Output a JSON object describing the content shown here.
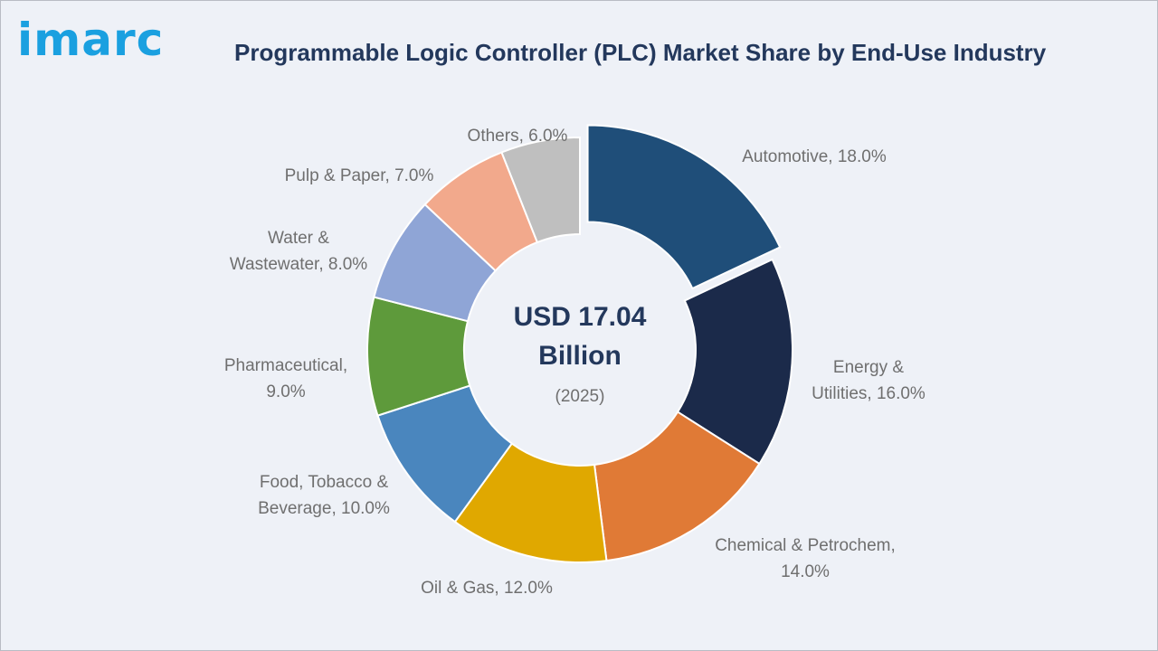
{
  "logo": {
    "text": "imarc",
    "color": "#1aa0e0"
  },
  "header": {
    "title": "Programmable Logic Controller (PLC) Market Share by End-Use Industry"
  },
  "center": {
    "line1": "USD 17.04",
    "line2": "Billion",
    "year": "(2025)"
  },
  "chart_data": {
    "type": "pie",
    "subtype": "donut",
    "title": "Programmable Logic Controller (PLC) Market Share by End-Use Industry",
    "unit": "%",
    "exploded_slice": "Automotive",
    "slices": [
      {
        "name": "Automotive",
        "value": 18.0,
        "color": "#1f4e79",
        "label": [
          "Automotive, 18.0%"
        ]
      },
      {
        "name": "Energy & Utilities",
        "value": 16.0,
        "color": "#1b2a4a",
        "label": [
          "Energy &",
          "Utilities, 16.0%"
        ]
      },
      {
        "name": "Chemical & Petrochem",
        "value": 14.0,
        "color": "#e07a36",
        "label": [
          "Chemical & Petrochem,",
          "14.0%"
        ]
      },
      {
        "name": "Oil & Gas",
        "value": 12.0,
        "color": "#e0a800",
        "label": [
          "Oil & Gas, 12.0%"
        ]
      },
      {
        "name": "Food, Tobacco & Beverage",
        "value": 10.0,
        "color": "#4a86be",
        "label": [
          "Food, Tobacco &",
          "Beverage, 10.0%"
        ]
      },
      {
        "name": "Pharmaceutical",
        "value": 9.0,
        "color": "#5e9a3b",
        "label": [
          "Pharmaceutical,",
          "9.0%"
        ]
      },
      {
        "name": "Water & Wastewater",
        "value": 8.0,
        "color": "#8fa5d6",
        "label": [
          "Water &",
          "Wastewater, 8.0%"
        ]
      },
      {
        "name": "Pulp & Paper",
        "value": 7.0,
        "color": "#f2a98c",
        "label": [
          "Pulp & Paper, 7.0%"
        ]
      },
      {
        "name": "Others",
        "value": 6.0,
        "color": "#bfbfbf",
        "label": [
          "Others, 6.0%"
        ]
      }
    ]
  }
}
